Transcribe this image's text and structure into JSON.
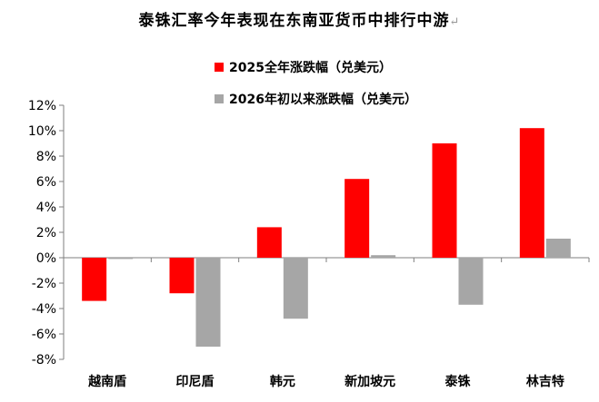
{
  "chart_data": {
    "type": "bar",
    "title": "泰铢汇率今年表现在东南亚货币中排行中游",
    "title_mark": "↵",
    "categories": [
      "越南盾",
      "印尼盾",
      "韩元",
      "新加坡元",
      "泰铢",
      "林吉特"
    ],
    "series": [
      {
        "name": "2025全年涨跌幅（兑美元）",
        "color": "#ff0000",
        "values": [
          -3.4,
          -2.8,
          2.4,
          6.2,
          9.0,
          10.2
        ]
      },
      {
        "name": "2026年初以来涨跌幅（兑美元）",
        "color": "#a6a6a6",
        "values": [
          -0.1,
          -7.0,
          -4.8,
          0.2,
          -3.7,
          1.5
        ]
      }
    ],
    "ylim": [
      -8,
      12
    ],
    "yticks": [
      "12%",
      "10%",
      "8%",
      "6%",
      "4%",
      "2%",
      "0%",
      "-2%",
      "-4%",
      "-6%",
      "-8%"
    ],
    "ytick_values": [
      12,
      10,
      8,
      6,
      4,
      2,
      0,
      -2,
      -4,
      -6,
      -8
    ],
    "xlabel": "",
    "ylabel": "",
    "grid": false,
    "legend": "top-center"
  }
}
